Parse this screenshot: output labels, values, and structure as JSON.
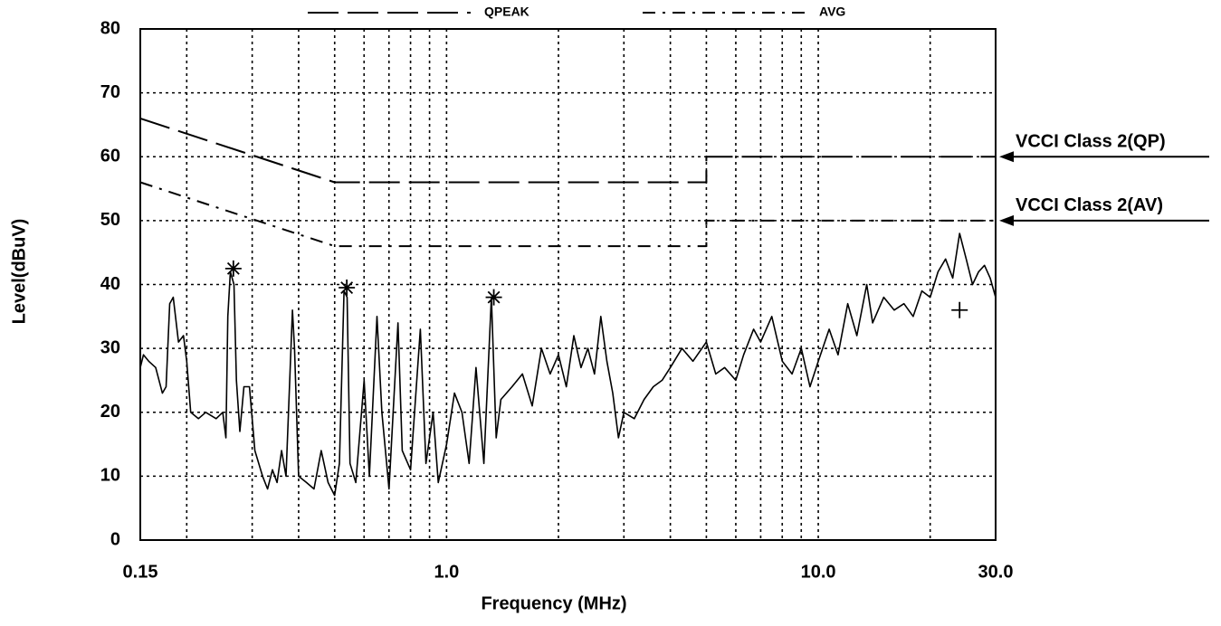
{
  "chart_data": {
    "type": "line",
    "xlabel": "Frequency (MHz)",
    "ylabel": "Level(dBuV)",
    "xscale": "log",
    "xlim": [
      0.15,
      30
    ],
    "ylim": [
      0,
      80
    ],
    "xticks": [
      {
        "value": 0.15,
        "label": "0.15"
      },
      {
        "value": 1,
        "label": "1.0"
      },
      {
        "value": 10,
        "label": "10.0"
      },
      {
        "value": 30,
        "label": "30.0"
      }
    ],
    "xminor": [
      0.2,
      0.3,
      0.4,
      0.5,
      0.6,
      0.7,
      0.8,
      0.9,
      2,
      3,
      4,
      5,
      6,
      7,
      8,
      9,
      20
    ],
    "yticks": [
      0,
      10,
      20,
      30,
      40,
      50,
      60,
      70,
      80
    ],
    "grid": true,
    "legend": "top",
    "series": [
      {
        "name": "QPEAK",
        "color": "#000000",
        "style": "dash",
        "x": [
          0.15,
          0.5,
          5,
          5,
          30
        ],
        "values": [
          66,
          56,
          56,
          60,
          60
        ]
      },
      {
        "name": "AVG",
        "color": "#000000",
        "style": "dashdot",
        "x": [
          0.15,
          0.5,
          5,
          5,
          30
        ],
        "values": [
          56,
          46,
          46,
          50,
          50
        ]
      },
      {
        "color": "#000000",
        "style": "solid",
        "x": [
          0.15,
          0.153,
          0.158,
          0.165,
          0.172,
          0.176,
          0.18,
          0.184,
          0.19,
          0.196,
          0.2,
          0.205,
          0.215,
          0.225,
          0.24,
          0.25,
          0.255,
          0.258,
          0.262,
          0.268,
          0.272,
          0.278,
          0.285,
          0.295,
          0.305,
          0.32,
          0.33,
          0.34,
          0.35,
          0.36,
          0.37,
          0.385,
          0.39,
          0.4,
          0.42,
          0.44,
          0.46,
          0.48,
          0.5,
          0.515,
          0.53,
          0.54,
          0.55,
          0.57,
          0.6,
          0.62,
          0.65,
          0.67,
          0.7,
          0.74,
          0.76,
          0.8,
          0.85,
          0.88,
          0.92,
          0.95,
          1.0,
          1.05,
          1.1,
          1.15,
          1.2,
          1.26,
          1.32,
          1.36,
          1.4,
          1.5,
          1.6,
          1.7,
          1.8,
          1.9,
          2.0,
          2.1,
          2.2,
          2.3,
          2.4,
          2.5,
          2.6,
          2.7,
          2.8,
          2.9,
          3.0,
          3.2,
          3.4,
          3.6,
          3.8,
          4.0,
          4.3,
          4.6,
          5.0,
          5.3,
          5.6,
          6.0,
          6.3,
          6.7,
          7.0,
          7.5,
          8.0,
          8.5,
          9.0,
          9.5,
          10.0,
          10.7,
          11.3,
          12.0,
          12.7,
          13.5,
          14.0,
          15.0,
          16.0,
          17.0,
          18.0,
          19.0,
          20.0,
          21.0,
          22.0,
          23.0,
          24.0,
          25.0,
          26.0,
          27.0,
          28.0,
          29.0,
          30.0
        ],
        "values": [
          27,
          29,
          28,
          27,
          23,
          24,
          37,
          38,
          31,
          32,
          28,
          20,
          19,
          20,
          19,
          20,
          16,
          35,
          42,
          40,
          25,
          17,
          24,
          24,
          14,
          10,
          8,
          11,
          9,
          14,
          10,
          36,
          30,
          10,
          9,
          8,
          14,
          9,
          7,
          12,
          39,
          38,
          12,
          9,
          25,
          10,
          35,
          20,
          8,
          34,
          14,
          11,
          33,
          12,
          20,
          9,
          15,
          23,
          20,
          12,
          27,
          12,
          38,
          16,
          22,
          24,
          26,
          21,
          30,
          26,
          29,
          24,
          32,
          27,
          30,
          26,
          35,
          28,
          23,
          16,
          20,
          19,
          22,
          24,
          25,
          27,
          30,
          28,
          31,
          26,
          27,
          25,
          29,
          33,
          31,
          35,
          28,
          26,
          30,
          24,
          28,
          33,
          29,
          37,
          32,
          40,
          34,
          38,
          36,
          37,
          35,
          39,
          38,
          42,
          44,
          41,
          48,
          44,
          40,
          42,
          43,
          41,
          38
        ]
      },
      {
        "color": "#000000",
        "marker": "asterisk",
        "x": [
          0.267,
          0.539,
          1.34
        ],
        "values": [
          42.5,
          39.5,
          38
        ]
      },
      {
        "color": "#000000",
        "marker": "plus",
        "x": [
          24
        ],
        "values": [
          36
        ]
      }
    ],
    "annotations": [
      {
        "text": "VCCI Class 2(QP)",
        "y": 60
      },
      {
        "text": "VCCI Class 2(AV)",
        "y": 50
      }
    ]
  }
}
